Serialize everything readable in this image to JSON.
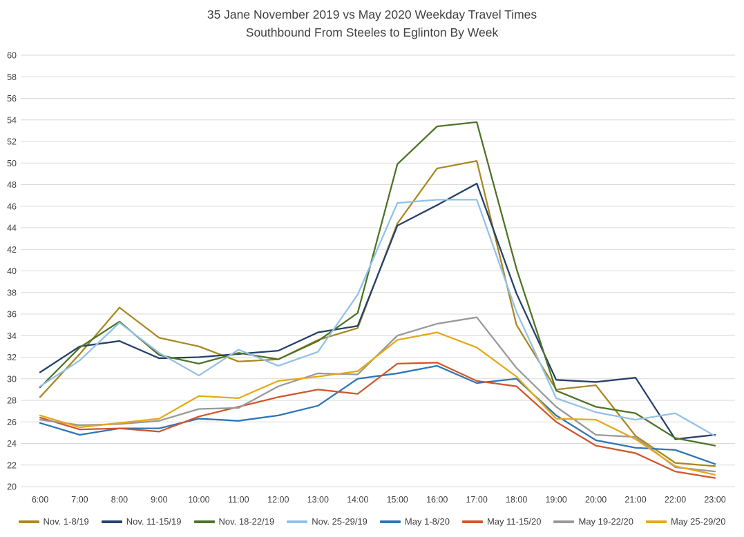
{
  "colors": {
    "background": "#FFFFFF",
    "grid": "#D9D9D9",
    "text": "#404040"
  },
  "chart_data": {
    "type": "line",
    "title": "35 Jane November 2019 vs May 2020 Weekday Travel Times Southbound From Steeles to Eglinton By Week",
    "title_line1": "35 Jane November 2019 vs May 2020 Weekday Travel Times",
    "title_line2": "Southbound From Steeles to Eglinton By Week",
    "xlabel": "",
    "ylabel": "",
    "ylim": [
      20,
      60
    ],
    "ytick_step": 2,
    "grid": "horizontal",
    "legend_position": "bottom",
    "categories": [
      "6:00",
      "7:00",
      "8:00",
      "9:00",
      "10:00",
      "11:00",
      "12:00",
      "13:00",
      "14:00",
      "15:00",
      "16:00",
      "17:00",
      "18:00",
      "19:00",
      "20:00",
      "21:00",
      "22:00",
      "23:00"
    ],
    "series": [
      {
        "name": "Nov. 1-8/19",
        "color": "#A98820",
        "values": [
          28.3,
          32.3,
          36.6,
          33.8,
          33.0,
          31.6,
          31.8,
          33.6,
          34.7,
          44.4,
          49.5,
          50.2,
          35.0,
          29.0,
          29.4,
          24.7,
          22.2,
          21.9
        ]
      },
      {
        "name": "Nov. 11-15/19",
        "color": "#24416B",
        "values": [
          30.6,
          33.0,
          33.5,
          31.9,
          32.0,
          32.3,
          32.6,
          34.3,
          34.9,
          44.2,
          46.1,
          48.1,
          37.9,
          29.9,
          29.7,
          30.1,
          24.4,
          24.8
        ]
      },
      {
        "name": "Nov. 18-22/19",
        "color": "#4E7327",
        "values": [
          29.2,
          32.9,
          35.3,
          32.2,
          31.4,
          32.4,
          31.8,
          33.5,
          36.1,
          49.9,
          53.4,
          53.8,
          40.2,
          28.9,
          27.4,
          26.8,
          24.5,
          23.8
        ]
      },
      {
        "name": "Nov. 25-29/19",
        "color": "#92C1E9",
        "values": [
          29.3,
          31.7,
          35.2,
          32.4,
          30.3,
          32.7,
          31.2,
          32.5,
          37.8,
          46.3,
          46.6,
          46.6,
          36.2,
          28.2,
          26.9,
          26.2,
          26.8,
          24.7
        ]
      },
      {
        "name": "May 1-8/20",
        "color": "#2E75B6",
        "values": [
          25.9,
          24.8,
          25.4,
          25.4,
          26.3,
          26.1,
          26.6,
          27.5,
          30.0,
          30.5,
          31.2,
          29.6,
          30.0,
          26.6,
          24.3,
          23.6,
          23.4,
          22.1
        ]
      },
      {
        "name": "May 11-15/20",
        "color": "#D0562B",
        "values": [
          26.4,
          25.3,
          25.4,
          25.1,
          26.5,
          27.4,
          28.3,
          29.0,
          28.6,
          31.4,
          31.5,
          29.8,
          29.3,
          26.0,
          23.8,
          23.1,
          21.4,
          20.8
        ]
      },
      {
        "name": "May 19-22/20",
        "color": "#999999",
        "values": [
          26.2,
          25.7,
          25.8,
          26.1,
          27.2,
          27.3,
          29.3,
          30.5,
          30.4,
          34.0,
          35.1,
          35.7,
          31.0,
          27.4,
          24.8,
          24.6,
          21.8,
          21.4
        ]
      },
      {
        "name": "May 25-29/20",
        "color": "#E6A817",
        "values": [
          26.6,
          25.5,
          25.9,
          26.3,
          28.4,
          28.2,
          29.8,
          30.2,
          30.7,
          33.6,
          34.3,
          32.9,
          30.2,
          26.3,
          26.2,
          24.4,
          21.9,
          21.1
        ]
      }
    ]
  }
}
